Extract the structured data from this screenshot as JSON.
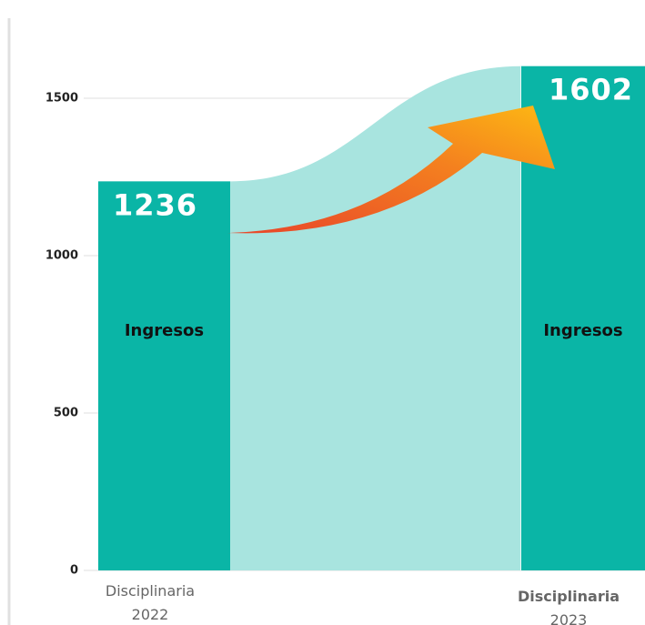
{
  "chart_data": {
    "type": "bar",
    "categories": [
      "Disciplinaria 2022",
      "Disciplinaria 2023"
    ],
    "values": [
      1236,
      1602
    ],
    "bar_labels": [
      "Ingresos",
      "Ingresos"
    ],
    "color": "#0ab5a6",
    "ylim": [
      0,
      1800
    ],
    "yticks": [
      0,
      500,
      1000,
      1500
    ],
    "grid": true
  }
}
